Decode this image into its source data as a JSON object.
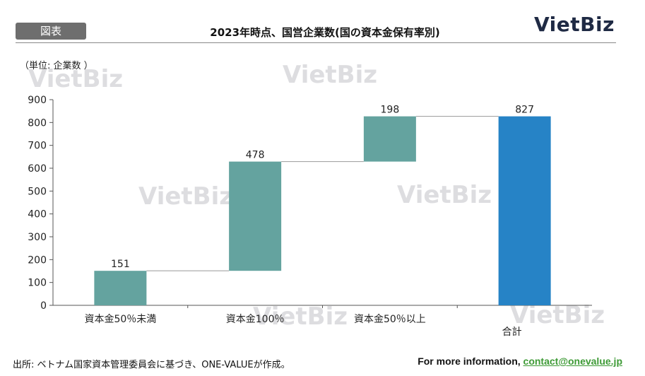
{
  "header": {
    "tag": "図表",
    "title": "2023年時点、国営企業数(国の資本金保有率別)",
    "logo": "VietBiz"
  },
  "unit_label": "（単位: 企業数 ）",
  "watermark": "VietBiz",
  "chart_data": {
    "type": "bar",
    "subtype": "waterfall",
    "categories": [
      "資本金50％未満",
      "資本金100％",
      "資本金50％以上",
      "合計"
    ],
    "values": [
      151,
      478,
      198,
      827
    ],
    "data_labels": [
      "151",
      "478",
      "198",
      "827"
    ],
    "ylim": [
      0,
      900
    ],
    "yticks": [
      "0",
      "100",
      "200",
      "300",
      "400",
      "500",
      "600",
      "700",
      "800",
      "900"
    ],
    "colors": {
      "step": "#64a39f",
      "total": "#2683c6"
    },
    "grid": false
  },
  "footer": {
    "source": "出所: ベトナム国家資本管理委員会に基づき、ONE-VALUEが作成。",
    "info_prefix": "For more information,",
    "email": "contact@onevalue.jp"
  }
}
